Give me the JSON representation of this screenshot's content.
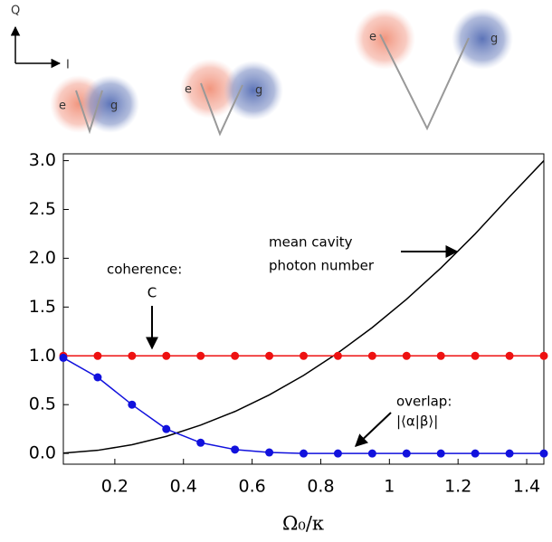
{
  "chart_data": {
    "type": "line",
    "x": [
      0.05,
      0.15,
      0.25,
      0.35,
      0.45,
      0.55,
      0.65,
      0.75,
      0.85,
      0.95,
      1.05,
      1.15,
      1.25,
      1.35,
      1.45
    ],
    "series": [
      {
        "color": "#000000",
        "markers": false,
        "values": [
          0.004,
          0.032,
          0.089,
          0.175,
          0.29,
          0.43,
          0.6,
          0.8,
          1.03,
          1.29,
          1.58,
          1.9,
          2.25,
          2.63,
          3.0
        ]
      },
      {
        "color": "#ee1111",
        "markers": true,
        "values": [
          1.0,
          1.0,
          1.0,
          1.0,
          1.0,
          1.0,
          1.0,
          1.0,
          1.0,
          1.0,
          1.0,
          1.0,
          1.0,
          1.0,
          1.0
        ]
      },
      {
        "color": "#1111dd",
        "markers": true,
        "values": [
          0.98,
          0.78,
          0.5,
          0.25,
          0.11,
          0.04,
          0.01,
          0.0,
          0.0,
          0.0,
          0.0,
          0.0,
          0.0,
          0.0,
          0.0
        ]
      }
    ],
    "xlim": [
      0.05,
      1.45
    ],
    "xticks": [
      0.2,
      0.4,
      0.6,
      0.8,
      1.0,
      1.2,
      1.4
    ],
    "ylim": [
      -0.11,
      3.07
    ],
    "yticks": [
      {
        "value": 0,
        "label": "0.0"
      },
      0.5,
      {
        "value": 1,
        "label": "1.0"
      },
      1.5,
      {
        "value": 2,
        "label": "2.0"
      },
      2.5,
      {
        "value": 3,
        "label": "3.0"
      }
    ],
    "x_label": "Ω₀/κ",
    "annotations": [
      {
        "lines": [
          "mean cavity",
          "photon number"
        ]
      },
      {
        "lines": [
          "coherence:",
          "C"
        ]
      },
      {
        "lines": [
          "overlap:",
          "|⟨α|β⟩|"
        ]
      }
    ]
  },
  "phase_diagram": {
    "axis_q": "Q",
    "axis_i": "I",
    "panels": [
      {
        "e": "e",
        "g": "g"
      },
      {
        "e": "e",
        "g": "g"
      },
      {
        "e": "e",
        "g": "g"
      }
    ]
  }
}
